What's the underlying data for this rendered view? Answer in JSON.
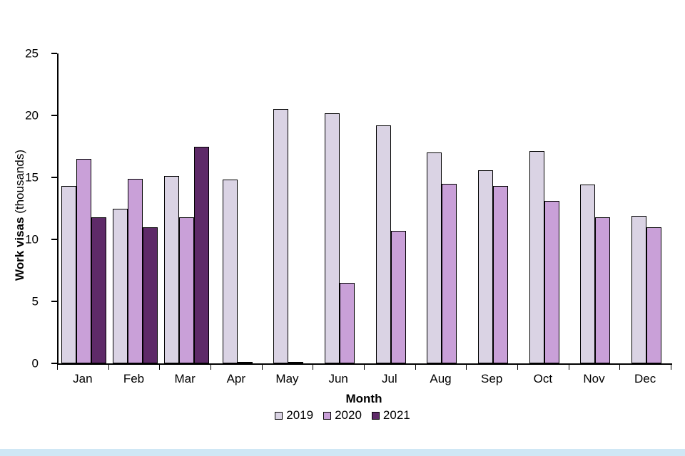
{
  "page": {
    "footer_strip_color": "#cfe7f5"
  },
  "chart_data": {
    "type": "bar",
    "title": "",
    "xlabel": "Month",
    "ylabel_main": "Work visas",
    "ylabel_units": " (thousands)",
    "ylim": [
      0,
      25
    ],
    "yticks": [
      0,
      5,
      10,
      15,
      20,
      25
    ],
    "grid": false,
    "legend_position": "bottom",
    "categories": [
      "Jan",
      "Feb",
      "Mar",
      "Apr",
      "May",
      "Jun",
      "Jul",
      "Aug",
      "Sep",
      "Oct",
      "Nov",
      "Dec"
    ],
    "series": [
      {
        "name": "2019",
        "color": "#dad3e4",
        "values": [
          14.3,
          12.5,
          15.1,
          14.8,
          20.5,
          20.2,
          19.2,
          17.0,
          15.6,
          17.1,
          14.4,
          11.9
        ]
      },
      {
        "name": "2020",
        "color": "#c9a0d8",
        "values": [
          16.5,
          14.9,
          11.8,
          0.1,
          0.1,
          6.5,
          10.7,
          14.5,
          14.3,
          13.1,
          11.8,
          11.0
        ]
      },
      {
        "name": "2021",
        "color": "#5e2a68",
        "values": [
          11.8,
          11.0,
          17.5,
          null,
          null,
          null,
          null,
          null,
          null,
          null,
          null,
          null
        ]
      }
    ]
  }
}
